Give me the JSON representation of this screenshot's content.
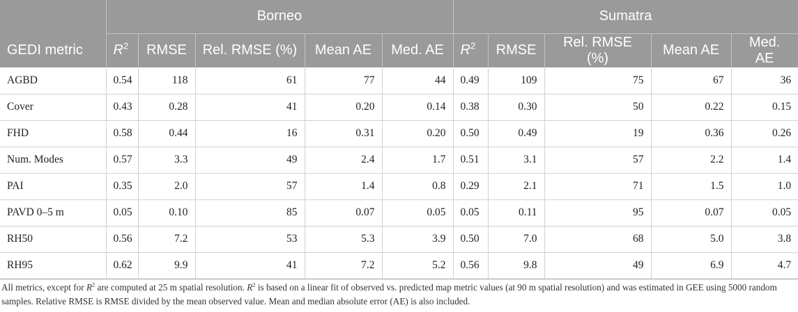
{
  "table": {
    "groups": [
      "Borneo",
      "Sumatra"
    ],
    "first_column_header": "GEDI metric",
    "r2_symbol": "R",
    "r2_superscript": "2",
    "column_labels": [
      "RMSE",
      "Rel. RMSE (%)",
      "Mean AE",
      "Med. AE"
    ],
    "rows": [
      {
        "metric": "AGBD",
        "borneo": [
          "0.54",
          "118",
          "61",
          "77",
          "44"
        ],
        "sumatra": [
          "0.49",
          "109",
          "75",
          "67",
          "36"
        ]
      },
      {
        "metric": "Cover",
        "borneo": [
          "0.43",
          "0.28",
          "41",
          "0.20",
          "0.14"
        ],
        "sumatra": [
          "0.38",
          "0.30",
          "50",
          "0.22",
          "0.15"
        ]
      },
      {
        "metric": "FHD",
        "borneo": [
          "0.58",
          "0.44",
          "16",
          "0.31",
          "0.20"
        ],
        "sumatra": [
          "0.50",
          "0.49",
          "19",
          "0.36",
          "0.26"
        ]
      },
      {
        "metric": "Num. Modes",
        "borneo": [
          "0.57",
          "3.3",
          "49",
          "2.4",
          "1.7"
        ],
        "sumatra": [
          "0.51",
          "3.1",
          "57",
          "2.2",
          "1.4"
        ]
      },
      {
        "metric": "PAI",
        "borneo": [
          "0.35",
          "2.0",
          "57",
          "1.4",
          "0.8"
        ],
        "sumatra": [
          "0.29",
          "2.1",
          "71",
          "1.5",
          "1.0"
        ]
      },
      {
        "metric": "PAVD 0–5 m",
        "borneo": [
          "0.05",
          "0.10",
          "85",
          "0.07",
          "0.05"
        ],
        "sumatra": [
          "0.05",
          "0.11",
          "95",
          "0.07",
          "0.05"
        ]
      },
      {
        "metric": "RH50",
        "borneo": [
          "0.56",
          "7.2",
          "53",
          "5.3",
          "3.9"
        ],
        "sumatra": [
          "0.50",
          "7.0",
          "68",
          "5.0",
          "3.8"
        ]
      },
      {
        "metric": "RH95",
        "borneo": [
          "0.62",
          "9.9",
          "41",
          "7.2",
          "5.2"
        ],
        "sumatra": [
          "0.56",
          "9.8",
          "49",
          "6.9",
          "4.7"
        ]
      }
    ]
  },
  "footnote": {
    "part1": "All metrics, except for ",
    "r2_symbol": "R",
    "r2_superscript": "2",
    "part2": " are computed at 25 m spatial resolution. ",
    "part3": " is based on a linear fit of observed vs. predicted map metric values (at 90 m spatial resolution) and was estimated in GEE using 5000 random samples. Relative RMSE is RMSE divided by the mean observed value. Mean and median absolute error (AE) is also included."
  },
  "colors": {
    "header_bg": "#9a9a9a",
    "header_text": "#ffffff",
    "grid": "#d2d2d2"
  }
}
